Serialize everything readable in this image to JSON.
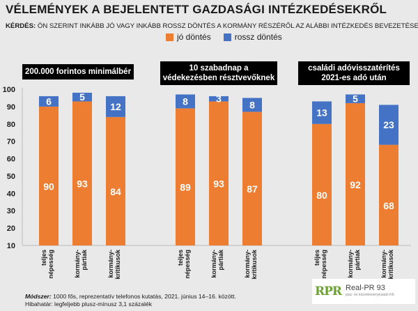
{
  "title": "VÉLEMÉNYEK A BEJELENTETT GAZDASÁGI INTÉZKEDÉSEKRŐL",
  "question_label": "KÉRDÉS:",
  "question_text": " ÖN SZERINT INKÁBB JÓ VAGY INKÁBB ROSSZ DÖNTÉS A KORMÁNY RÉSZÉRŐL AZ ALÁBBI INTÉZKEDÉS BEVEZETÉSE?",
  "colors": {
    "good": "#ed7d31",
    "bad": "#4472c4"
  },
  "method_label": "Módszer:",
  "method_text": " 1000 fős, reprezentatív telefonos kutatás, 2021. június 14–16. között.",
  "error_text": "Hibahatár: legfeljebb plusz-mínusz 3,1 százalék",
  "logo_mark": "RPR",
  "logo_name": "Real-PR 93",
  "logo_sub": "piac- és közvéleménykutató Kft.",
  "chart_data": {
    "type": "bar",
    "stacked": true,
    "ylim": [
      10,
      100
    ],
    "yticks": [
      10,
      20,
      30,
      40,
      50,
      60,
      70,
      80,
      90,
      100
    ],
    "legend": [
      "jó döntés",
      "rossz döntés"
    ],
    "legend_position": "top",
    "groups": [
      {
        "label": "200.000 forintos minimálbér",
        "categories": [
          "teljes népesség",
          "kormány-pártiak",
          "kormány-kritikusok"
        ],
        "good": [
          90,
          93,
          84
        ],
        "bad": [
          6,
          5,
          12
        ]
      },
      {
        "label": "10 szabadnap a védekezésben résztvevőknek",
        "categories": [
          "teljes népesség",
          "kormány-pártiak",
          "kormány-kritikusok"
        ],
        "good": [
          89,
          93,
          87
        ],
        "bad": [
          8,
          3,
          8
        ]
      },
      {
        "label": "családi adóvisszatérítés 2021-es adó után",
        "categories": [
          "teljes népesség",
          "kormány-pártiak",
          "kormány-kritikusok"
        ],
        "good": [
          80,
          92,
          68
        ],
        "bad": [
          13,
          5,
          23
        ]
      }
    ]
  }
}
